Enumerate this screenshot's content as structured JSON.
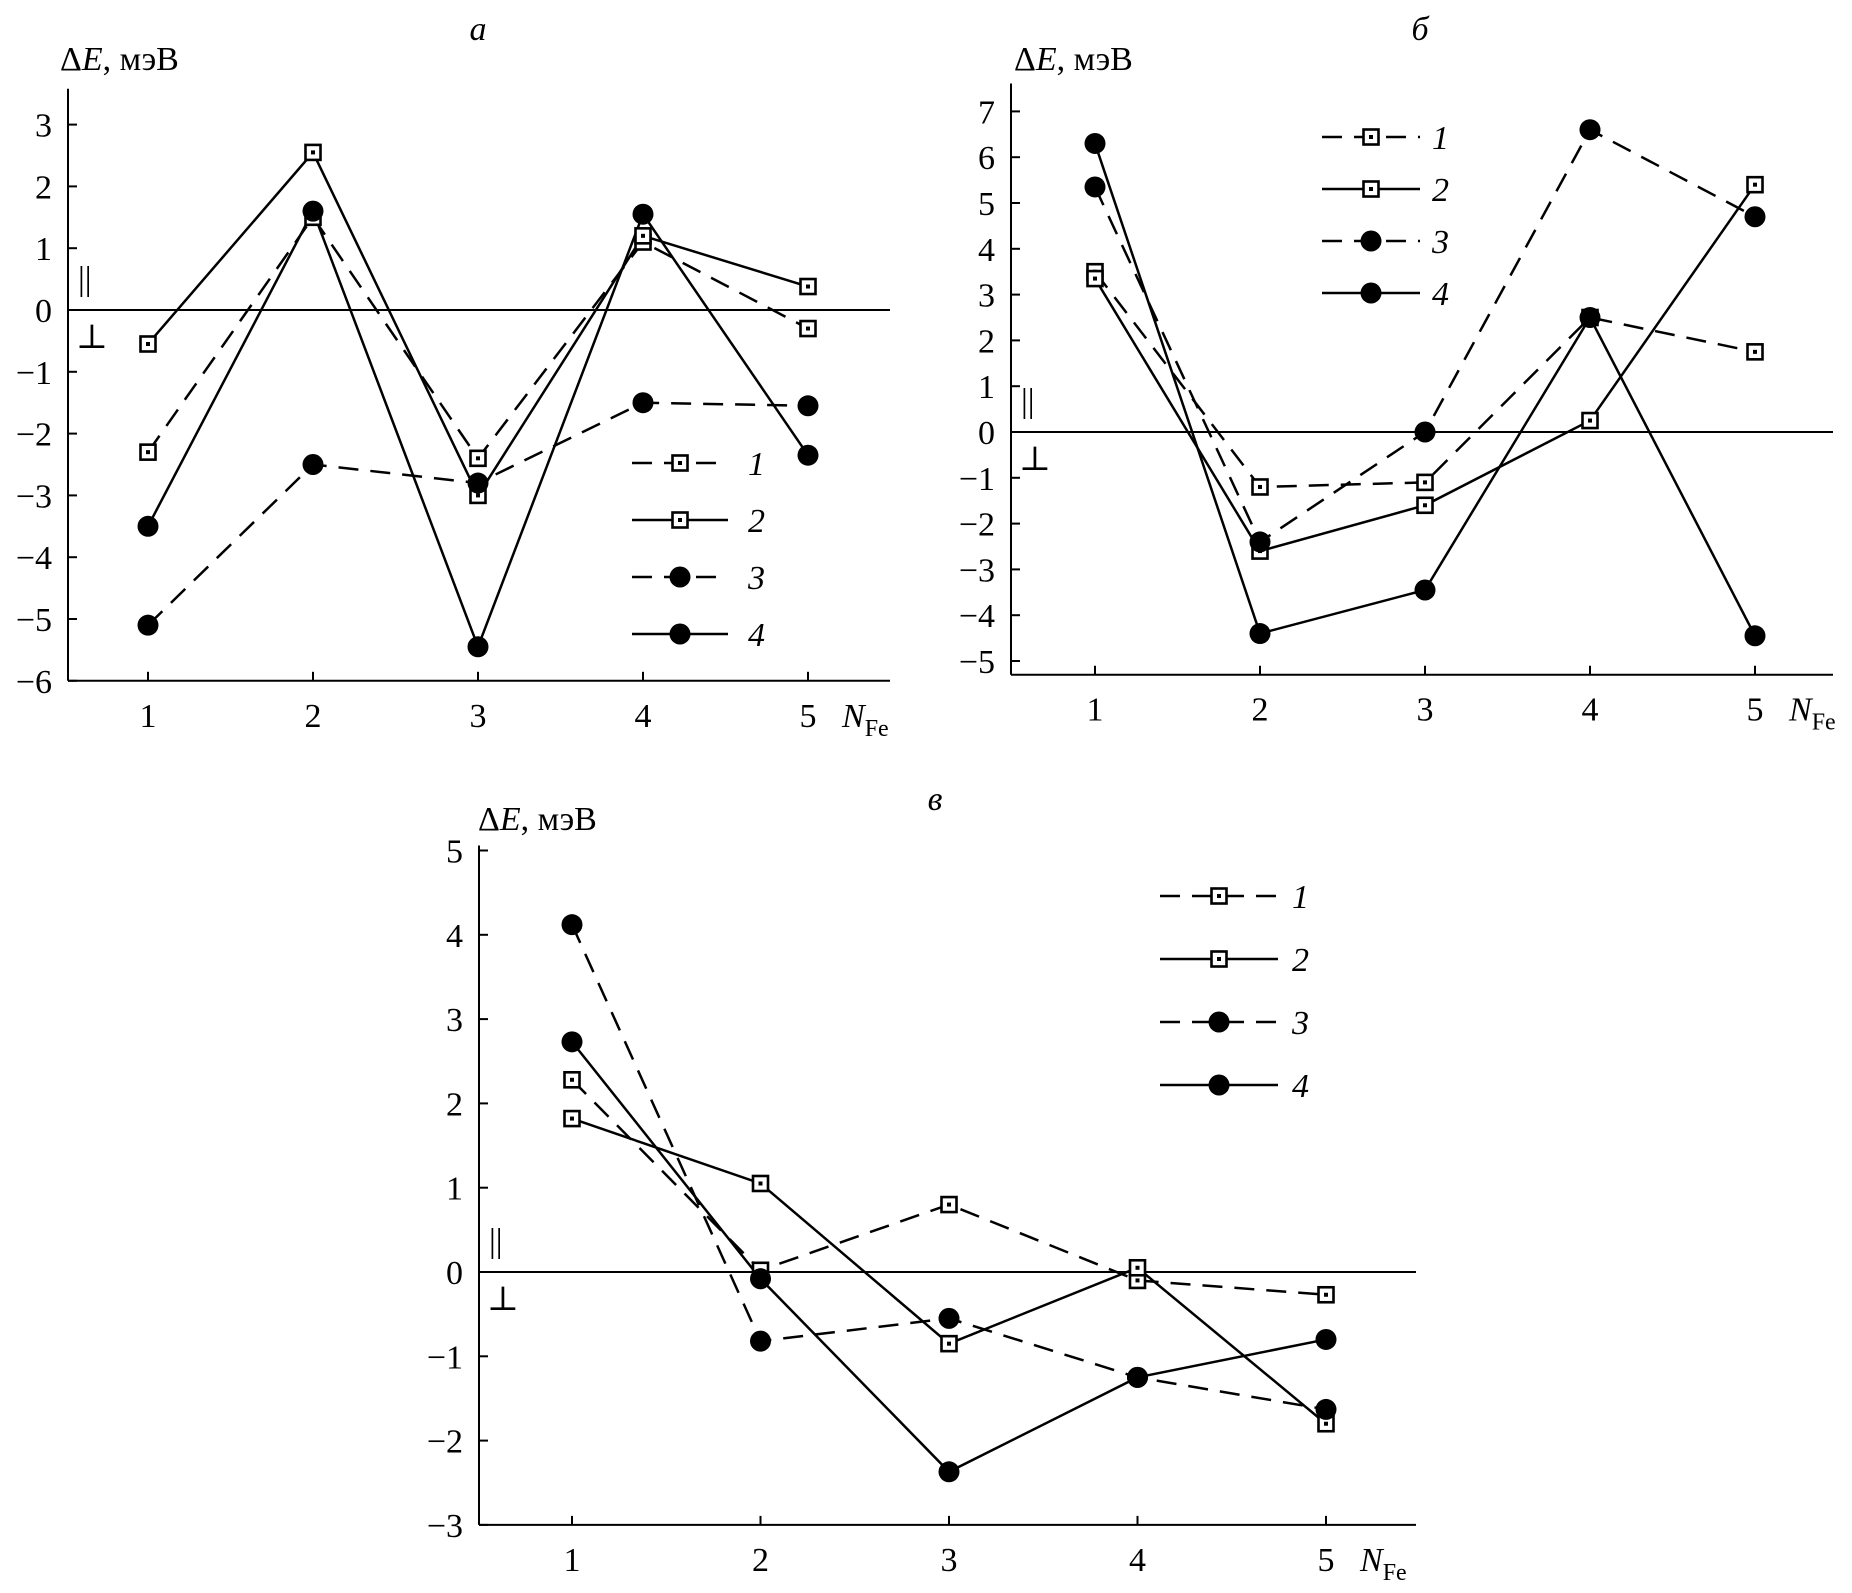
{
  "chart_data": [
    {
      "type": "line",
      "panel": "а",
      "ylabel": "ΔE, мэВ",
      "xlabel": "N",
      "xlabel_sub": "Fe",
      "x": [
        1,
        2,
        3,
        4,
        5
      ],
      "ylim": [
        -6,
        3.5
      ],
      "yticks": [
        3,
        2,
        1,
        0,
        -1,
        -2,
        -3,
        -4,
        -5,
        -6
      ],
      "ytick_labels": [
        "3",
        "2",
        "1",
        "0",
        "−1",
        "−2",
        "−3",
        "−4",
        "−5",
        "−6"
      ],
      "region_above": "||",
      "region_below": "⊥",
      "series": [
        {
          "name": "1",
          "marker": "square",
          "dashed": true,
          "values": [
            -2.3,
            1.5,
            -2.4,
            1.1,
            -0.3
          ]
        },
        {
          "name": "2",
          "marker": "square",
          "dashed": false,
          "values": [
            -0.55,
            2.55,
            -3.0,
            1.2,
            0.38
          ]
        },
        {
          "name": "3",
          "marker": "circle",
          "dashed": true,
          "values": [
            -5.1,
            -2.5,
            -2.8,
            -1.5,
            -1.55
          ]
        },
        {
          "name": "4",
          "marker": "circle",
          "dashed": false,
          "values": [
            -3.5,
            1.6,
            -5.45,
            1.55,
            -2.35
          ]
        }
      ],
      "legend": {
        "placement": "lower-right"
      }
    },
    {
      "type": "line",
      "panel": "б",
      "ylabel": "ΔE, мэВ",
      "xlabel": "N",
      "xlabel_sub": "Fe",
      "x": [
        1,
        2,
        3,
        4,
        5
      ],
      "ylim": [
        -5.3,
        7.5
      ],
      "yticks": [
        7,
        6,
        5,
        4,
        3,
        2,
        1,
        0,
        -1,
        -2,
        -3,
        -4,
        -5
      ],
      "ytick_labels": [
        "7",
        "6",
        "5",
        "4",
        "3",
        "2",
        "1",
        "0",
        "−1",
        "−2",
        "−3",
        "−4",
        "−5"
      ],
      "region_above": "||",
      "region_below": "⊥",
      "series": [
        {
          "name": "1",
          "marker": "square",
          "dashed": true,
          "values": [
            3.5,
            -1.2,
            -1.1,
            2.5,
            1.75
          ]
        },
        {
          "name": "2",
          "marker": "square",
          "dashed": false,
          "values": [
            3.35,
            -2.6,
            -1.6,
            0.25,
            5.4
          ]
        },
        {
          "name": "3",
          "marker": "circle",
          "dashed": true,
          "values": [
            5.35,
            -2.4,
            0.0,
            6.6,
            4.7
          ]
        },
        {
          "name": "4",
          "marker": "circle",
          "dashed": false,
          "values": [
            6.3,
            -4.4,
            -3.45,
            2.5,
            -4.45
          ]
        }
      ],
      "legend": {
        "placement": "top-center"
      }
    },
    {
      "type": "line",
      "panel": "в",
      "ylabel": "ΔE, мэВ",
      "xlabel": "N",
      "xlabel_sub": "Fe",
      "x": [
        1,
        2,
        3,
        4,
        5
      ],
      "ylim": [
        -3,
        5
      ],
      "yticks": [
        5,
        4,
        3,
        2,
        1,
        0,
        -1,
        -2,
        -3
      ],
      "ytick_labels": [
        "5",
        "4",
        "3",
        "2",
        "1",
        "0",
        "−1",
        "−2",
        "−3"
      ],
      "region_above": "||",
      "region_below": "⊥",
      "series": [
        {
          "name": "1",
          "marker": "square",
          "dashed": true,
          "values": [
            2.28,
            0.02,
            0.8,
            -0.1,
            -0.27
          ]
        },
        {
          "name": "2",
          "marker": "square",
          "dashed": false,
          "values": [
            1.82,
            1.05,
            -0.85,
            0.05,
            -1.8
          ]
        },
        {
          "name": "3",
          "marker": "circle",
          "dashed": true,
          "values": [
            4.12,
            -0.82,
            -0.55,
            -1.25,
            -1.63
          ]
        },
        {
          "name": "4",
          "marker": "circle",
          "dashed": false,
          "values": [
            2.73,
            -0.08,
            -2.37,
            -1.25,
            -0.8
          ]
        }
      ],
      "legend": {
        "placement": "top-right"
      }
    }
  ]
}
